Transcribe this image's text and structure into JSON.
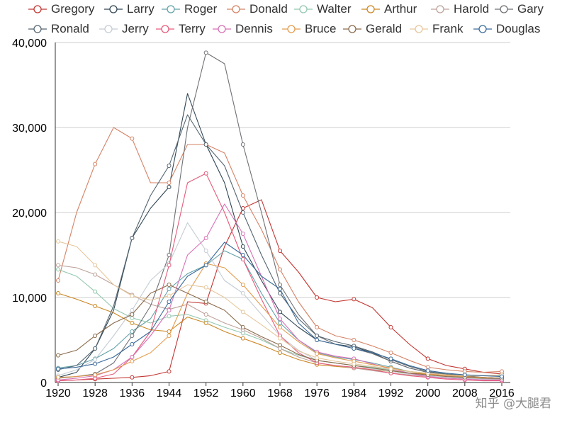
{
  "chart_data": {
    "type": "line",
    "title": "",
    "xlabel": "",
    "ylabel": "",
    "x": [
      1920,
      1924,
      1928,
      1932,
      1936,
      1940,
      1944,
      1948,
      1952,
      1956,
      1960,
      1964,
      1968,
      1972,
      1976,
      1980,
      1984,
      1988,
      1992,
      1996,
      2000,
      2004,
      2008,
      2012,
      2016
    ],
    "x_ticks": [
      "1920",
      "1928",
      "1936",
      "1944",
      "1952",
      "1960",
      "1968",
      "1976",
      "1984",
      "1992",
      "2000",
      "2008",
      "2016"
    ],
    "y_ticks": [
      "0",
      "10,000",
      "20,000",
      "30,000",
      "40,000"
    ],
    "ylim": [
      0,
      40000
    ],
    "xlim": [
      1920,
      2018
    ],
    "grid": true,
    "legend_position": "top",
    "series": [
      {
        "name": "Gregory",
        "color": "#c23531",
        "values": [
          200,
          300,
          400,
          500,
          600,
          800,
          1300,
          9500,
          9300,
          16000,
          20500,
          21500,
          15500,
          13000,
          10000,
          9500,
          9800,
          8800,
          6500,
          4500,
          2800,
          2000,
          1600,
          1200,
          1000
        ]
      },
      {
        "name": "Larry",
        "color": "#2f4554",
        "values": [
          600,
          1200,
          4000,
          8500,
          17000,
          20500,
          23000,
          34000,
          28000,
          23500,
          16000,
          12000,
          8300,
          6500,
          5000,
          4500,
          4200,
          3500,
          2500,
          1700,
          1200,
          900,
          700,
          600,
          500
        ]
      },
      {
        "name": "Roger",
        "color": "#61a0a8",
        "values": [
          1700,
          2000,
          2800,
          4000,
          6000,
          7500,
          11000,
          12800,
          13800,
          15500,
          14500,
          10500,
          7000,
          5000,
          3500,
          3000,
          2700,
          2300,
          1800,
          1300,
          1000,
          800,
          600,
          500,
          400
        ]
      },
      {
        "name": "Donald",
        "color": "#d48265",
        "values": [
          12000,
          20000,
          25700,
          30000,
          28700,
          23500,
          23500,
          28000,
          28000,
          27000,
          22000,
          18000,
          13300,
          9500,
          6500,
          5500,
          5000,
          4300,
          3500,
          2600,
          1800,
          1500,
          1300,
          1200,
          1300
        ]
      },
      {
        "name": "Walter",
        "color": "#91c7ae",
        "values": [
          13300,
          12500,
          10700,
          8700,
          7600,
          7000,
          7800,
          8000,
          7300,
          6500,
          5800,
          5000,
          4000,
          3200,
          2600,
          2300,
          2000,
          1800,
          1500,
          1300,
          1100,
          1000,
          900,
          800,
          800
        ]
      },
      {
        "name": "Arthur",
        "color": "#ca8622",
        "values": [
          10500,
          9800,
          9000,
          8200,
          7000,
          6200,
          6000,
          7700,
          7000,
          6000,
          5200,
          4400,
          3500,
          2700,
          2100,
          1900,
          1700,
          1500,
          1300,
          1100,
          1000,
          900,
          800,
          800,
          900
        ]
      },
      {
        "name": "Harold",
        "color": "#bda29a",
        "values": [
          13800,
          13500,
          12700,
          11500,
          10300,
          9200,
          8600,
          9200,
          8000,
          7000,
          6200,
          5200,
          4000,
          3000,
          2300,
          2000,
          1700,
          1400,
          1100,
          900,
          700,
          600,
          500,
          400,
          400
        ]
      },
      {
        "name": "Gary",
        "color": "#6e7074",
        "values": [
          500,
          700,
          1000,
          2300,
          5500,
          9000,
          15000,
          30000,
          38800,
          37500,
          28000,
          20000,
          11500,
          8000,
          5500,
          4500,
          4000,
          3400,
          2500,
          1700,
          1200,
          900,
          700,
          600,
          500
        ]
      },
      {
        "name": "Ronald",
        "color": "#546570",
        "values": [
          1500,
          2000,
          4000,
          9000,
          17000,
          22000,
          25500,
          31500,
          28000,
          25500,
          20000,
          15000,
          10500,
          7500,
          5500,
          4800,
          4300,
          3600,
          2700,
          1900,
          1300,
          1000,
          800,
          600,
          500
        ]
      },
      {
        "name": "Jerry",
        "color": "#c4ccd3",
        "values": [
          800,
          1500,
          2700,
          5500,
          8500,
          12000,
          14000,
          18800,
          15500,
          12000,
          10500,
          8000,
          5500,
          3800,
          2600,
          2300,
          2000,
          1600,
          1300,
          1000,
          800,
          600,
          500,
          400,
          300
        ]
      },
      {
        "name": "Terry",
        "color": "#e65a7a",
        "values": [
          200,
          300,
          500,
          1000,
          3000,
          6000,
          13800,
          23500,
          24600,
          20000,
          14500,
          9800,
          5500,
          3500,
          2300,
          2000,
          1800,
          1500,
          1100,
          800,
          600,
          400,
          300,
          200,
          200
        ]
      },
      {
        "name": "Dennis",
        "color": "#d770b5",
        "values": [
          300,
          500,
          800,
          1500,
          3000,
          5500,
          8500,
          15000,
          17000,
          21000,
          17500,
          12500,
          7500,
          5000,
          3600,
          3100,
          2800,
          2200,
          1600,
          1100,
          700,
          500,
          400,
          300,
          300
        ]
      },
      {
        "name": "Bruce",
        "color": "#e29c4e",
        "values": [
          600,
          700,
          900,
          1500,
          2500,
          3500,
          5500,
          10500,
          14000,
          13500,
          11500,
          9000,
          6500,
          4800,
          3400,
          2900,
          2500,
          2100,
          1700,
          1300,
          1000,
          800,
          700,
          600,
          500
        ]
      },
      {
        "name": "Gerald",
        "color": "#8a6a4a",
        "values": [
          3200,
          3800,
          5500,
          7000,
          8000,
          10500,
          11500,
          10500,
          9500,
          8500,
          6500,
          5400,
          4400,
          3300,
          2600,
          2300,
          2000,
          1700,
          1400,
          1100,
          900,
          700,
          600,
          500,
          500
        ]
      },
      {
        "name": "Frank",
        "color": "#e6c79c",
        "values": [
          16600,
          16000,
          13800,
          11500,
          10200,
          9700,
          10200,
          11500,
          11200,
          10000,
          8300,
          6800,
          5200,
          3700,
          2900,
          2500,
          2200,
          1900,
          1600,
          1300,
          1100,
          900,
          800,
          800,
          900
        ]
      },
      {
        "name": "Douglas",
        "color": "#3a6a9a",
        "values": [
          1600,
          1800,
          2200,
          3000,
          4500,
          6000,
          9500,
          12500,
          13800,
          16500,
          15000,
          12500,
          11000,
          7000,
          5000,
          4500,
          4000,
          3500,
          2800,
          2000,
          1400,
          1100,
          900,
          800,
          700
        ]
      }
    ]
  },
  "watermark": "知乎 @大腿君"
}
